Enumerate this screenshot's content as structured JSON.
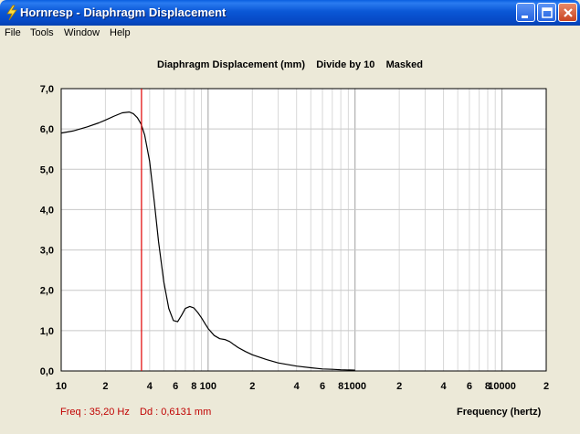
{
  "window": {
    "title": "Hornresp - Diaphragm Displacement"
  },
  "menu": [
    "File",
    "Tools",
    "Window",
    "Help"
  ],
  "graph": {
    "title": "Diaphragm Displacement (mm)    Divide by 10    Masked",
    "x_axis_label": "Frequency (hertz)",
    "cursor": {
      "freq_text": "Freq : 35,20 Hz",
      "dd_text": "Dd : 0,6131 mm"
    }
  },
  "colors": {
    "curve": "#000000",
    "cursor": "#e00000",
    "grid": "#c8c8c8",
    "status_text": "#c00000",
    "titlebar": "#0a57d6"
  },
  "chart_data": {
    "type": "line",
    "x_scale": "log",
    "xlim": [
      10,
      20000
    ],
    "ylim": [
      0,
      7
    ],
    "y_ticks": [
      "0,0",
      "1,0",
      "2,0",
      "3,0",
      "4,0",
      "5,0",
      "6,0",
      "7,0"
    ],
    "x_ticks": [
      {
        "v": 10,
        "l": "10"
      },
      {
        "v": 20,
        "l": "2"
      },
      {
        "v": 40,
        "l": "4"
      },
      {
        "v": 60,
        "l": "6"
      },
      {
        "v": 80,
        "l": "8"
      },
      {
        "v": 100,
        "l": "100"
      },
      {
        "v": 200,
        "l": "2"
      },
      {
        "v": 400,
        "l": "4"
      },
      {
        "v": 600,
        "l": "6"
      },
      {
        "v": 800,
        "l": "8"
      },
      {
        "v": 1000,
        "l": "1000"
      },
      {
        "v": 2000,
        "l": "2"
      },
      {
        "v": 4000,
        "l": "4"
      },
      {
        "v": 6000,
        "l": "6"
      },
      {
        "v": 8000,
        "l": "8"
      },
      {
        "v": 10000,
        "l": "10000"
      },
      {
        "v": 20000,
        "l": "2"
      }
    ],
    "cursor_x": 35.2,
    "series": [
      {
        "x": [
          10,
          12,
          15,
          18,
          20,
          23,
          26,
          29,
          31,
          33,
          35,
          37,
          40,
          43,
          46,
          50,
          54,
          58,
          62,
          66,
          70,
          75,
          80,
          85,
          90,
          95,
          100,
          110,
          120,
          130,
          140,
          150,
          160,
          180,
          200,
          250,
          300,
          400,
          500,
          600,
          700,
          800,
          1000
        ],
        "y": [
          5.9,
          5.95,
          6.05,
          6.15,
          6.22,
          6.32,
          6.4,
          6.42,
          6.38,
          6.28,
          6.12,
          5.85,
          5.2,
          4.2,
          3.2,
          2.2,
          1.55,
          1.25,
          1.22,
          1.38,
          1.55,
          1.6,
          1.56,
          1.45,
          1.32,
          1.18,
          1.05,
          0.88,
          0.8,
          0.78,
          0.73,
          0.65,
          0.58,
          0.48,
          0.4,
          0.28,
          0.2,
          0.12,
          0.08,
          0.05,
          0.04,
          0.03,
          0.02
        ]
      }
    ]
  }
}
